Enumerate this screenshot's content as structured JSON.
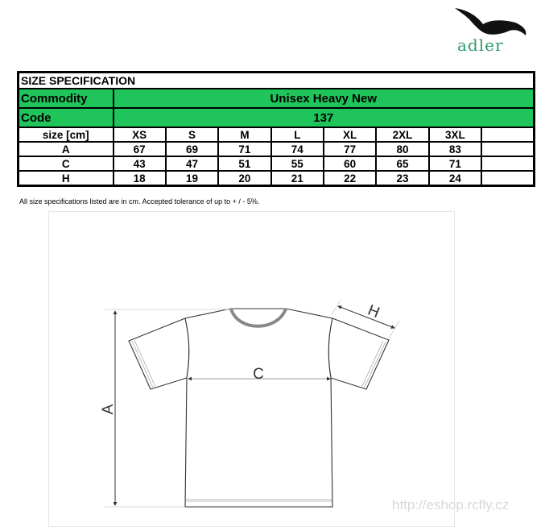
{
  "logo": {
    "text": "adler",
    "icon": "eagle-icon"
  },
  "table": {
    "title": "SIZE SPECIFICATION",
    "commodity_label": "Commodity",
    "commodity": "Unisex Heavy New",
    "code_label": "Code",
    "code": "137",
    "header": [
      "size [cm]",
      "XS",
      "S",
      "M",
      "L",
      "XL",
      "2XL",
      "3XL",
      ""
    ],
    "rows": [
      [
        "A",
        "67",
        "69",
        "71",
        "74",
        "77",
        "80",
        "83",
        ""
      ],
      [
        "C",
        "43",
        "47",
        "51",
        "55",
        "60",
        "65",
        "71",
        ""
      ],
      [
        "H",
        "18",
        "19",
        "20",
        "21",
        "22",
        "23",
        "24",
        ""
      ]
    ]
  },
  "note": "All size specifications listed are in cm. Accepted tolerance of up to + / - 5%.",
  "diagram": {
    "label_a": "A",
    "label_c": "C",
    "label_h": "H"
  },
  "watermark": "http://eshop.rcfly.cz",
  "colors": {
    "green": "#1fc45a",
    "logo_green": "#2a9a6a"
  }
}
